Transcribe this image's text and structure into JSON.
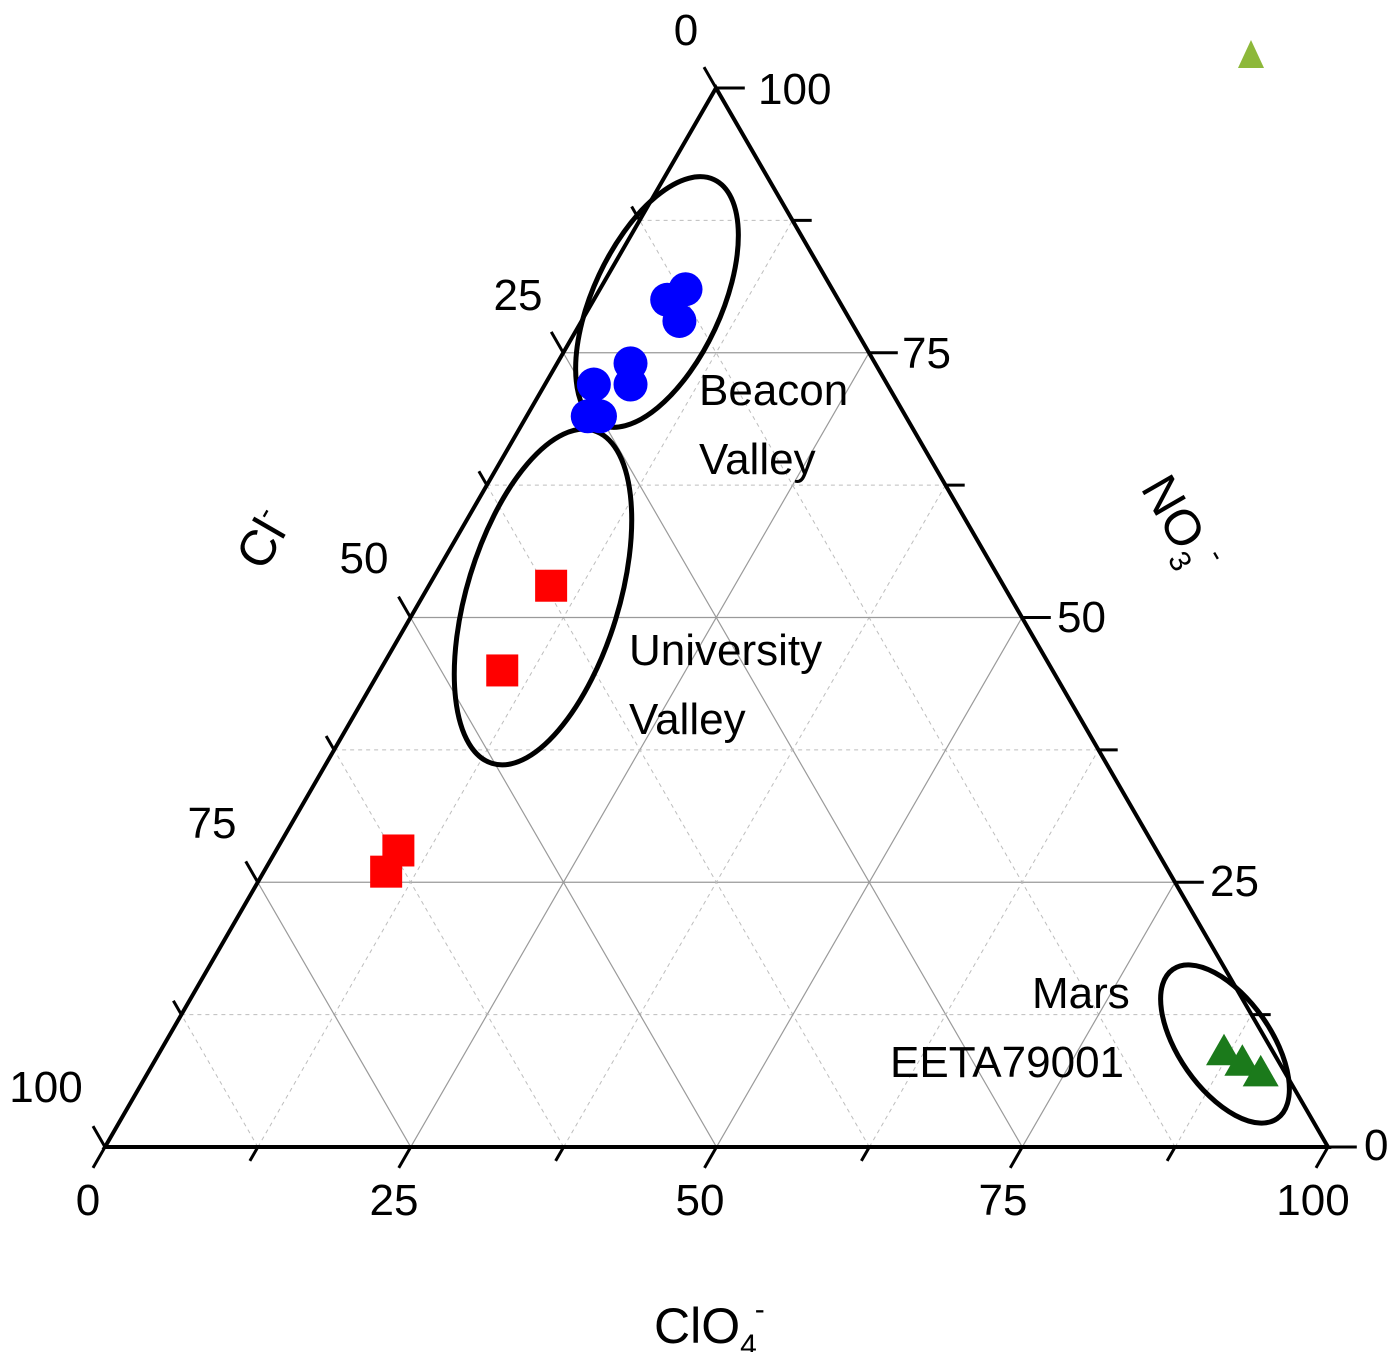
{
  "chart_data": {
    "type": "scatter",
    "subtype": "ternary",
    "title": "",
    "axes": {
      "bottom": {
        "label": "ClO",
        "sub": "4",
        "sup": "-",
        "ticks": [
          "0",
          "25",
          "50",
          "75",
          "100"
        ]
      },
      "left": {
        "label": "Cl",
        "sup": "-",
        "ticks": [
          "0",
          "25",
          "50",
          "75",
          "100"
        ]
      },
      "right": {
        "label": "NO",
        "sub": "3",
        "sup": "-",
        "ticks": [
          "0",
          "25",
          "50",
          "75",
          "100"
        ]
      }
    },
    "range": [
      0,
      100
    ],
    "grid": true,
    "series": [
      {
        "group": "Beacon Valley",
        "marker": "circle",
        "color": "#0000ff",
        "points": [
          {
            "clo4": 7,
            "cl": 12,
            "no3": 81
          },
          {
            "clo4": 6,
            "cl": 14,
            "no3": 80
          },
          {
            "clo4": 8,
            "cl": 14,
            "no3": 78
          },
          {
            "clo4": 6,
            "cl": 20,
            "no3": 74
          },
          {
            "clo4": 7,
            "cl": 21,
            "no3": 72
          },
          {
            "clo4": 4,
            "cl": 24,
            "no3": 72
          },
          {
            "clo4": 6,
            "cl": 25,
            "no3": 69
          },
          {
            "clo4": 5,
            "cl": 26,
            "no3": 69
          }
        ]
      },
      {
        "group": "University Valley",
        "marker": "square",
        "color": "#ff0000",
        "points": [
          {
            "clo4": 10,
            "cl": 37,
            "no3": 53
          },
          {
            "clo4": 10,
            "cl": 45,
            "no3": 45
          },
          {
            "clo4": 10,
            "cl": 62,
            "no3": 28
          },
          {
            "clo4": 10,
            "cl": 64,
            "no3": 26
          }
        ]
      },
      {
        "group": "Mars EETA79001",
        "marker": "triangle",
        "color": "#1b7a1b",
        "points": [
          {
            "clo4": 87,
            "cl": 4,
            "no3": 9
          },
          {
            "clo4": 89,
            "cl": 3,
            "no3": 8
          },
          {
            "clo4": 91,
            "cl": 2,
            "no3": 7
          }
        ]
      }
    ],
    "annotations": [
      {
        "lines": [
          "Beacon",
          "Valley"
        ]
      },
      {
        "lines": [
          "University",
          "Valley"
        ]
      },
      {
        "lines": [
          "Mars",
          "EETA79001"
        ]
      }
    ],
    "legend_marker_color": "#8db83a"
  }
}
